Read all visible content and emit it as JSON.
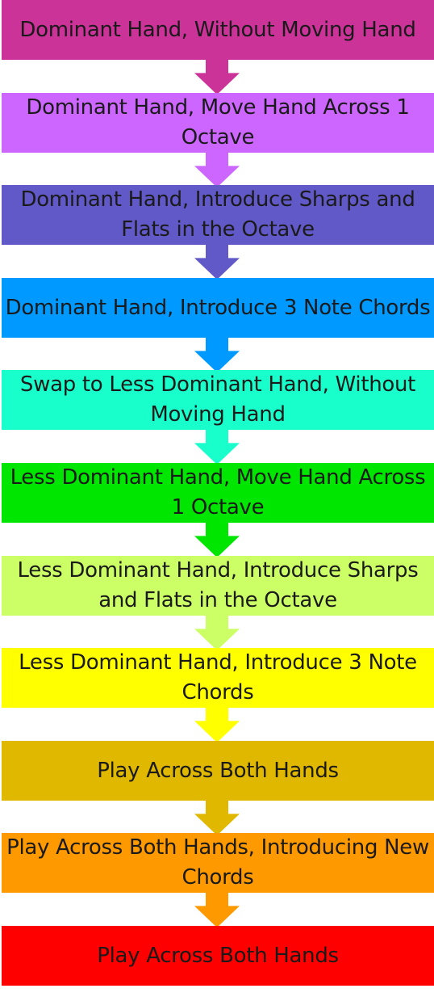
{
  "steps": [
    {
      "label": "Dominant Hand, Without Moving Hand",
      "color": "#cc3399"
    },
    {
      "label": "Dominant Hand, Move Hand Across 1 Octave",
      "color": "#cc66ff"
    },
    {
      "label": "Dominant Hand, Introduce Sharps and Flats in the Octave",
      "color": "#6159c7"
    },
    {
      "label": "Dominant Hand, Introduce 3 Note Chords",
      "color": "#0099ff"
    },
    {
      "label": "Swap to Less Dominant Hand, Without Moving Hand",
      "color": "#19ffcc"
    },
    {
      "label": "Less Dominant Hand, Move Hand Across 1 Octave",
      "color": "#00e600"
    },
    {
      "label": "Less Dominant Hand, Introduce Sharps and Flats in the Octave",
      "color": "#ccff66"
    },
    {
      "label": "Less Dominant Hand, Introduce 3 Note Chords",
      "color": "#ffff00"
    },
    {
      "label": "Play Across Both Hands",
      "color": "#e0b800"
    },
    {
      "label": "Play Across Both Hands, Introducing New Chords",
      "color": "#ff9900"
    },
    {
      "label": "Play Across Both Hands",
      "color": "#ff0000"
    }
  ]
}
